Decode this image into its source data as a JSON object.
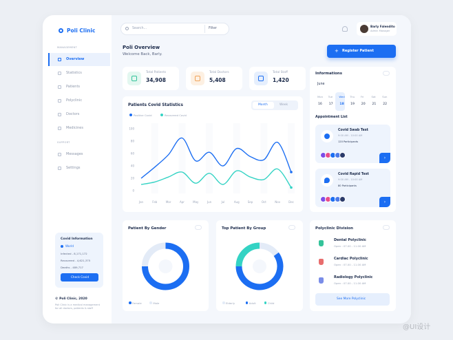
{
  "sidebar": {
    "brand": "Poli Clinic",
    "sections": [
      {
        "title": "MANAGEMENT",
        "items": [
          "Overview",
          "Statistics",
          "Patients",
          "Polyclinic",
          "Doctors",
          "Medicines"
        ]
      },
      {
        "title": "SUPPORT",
        "items": [
          "Messages",
          "Settings"
        ]
      }
    ],
    "covid": {
      "title": "Covid Information",
      "region": "World",
      "stats": [
        "Infected - 8,171,172",
        "Recovered - 4,621,375",
        "Deaths - 489,717"
      ],
      "button": "Check Covid"
    },
    "footer": {
      "copyright": "© Poli Clinic, 2020",
      "note": "Poli Clinic is a medical management for all doctors, patients & staff"
    }
  },
  "topbar": {
    "search": "Search...",
    "filter": "Filter",
    "user": {
      "name": "Barly Falendito",
      "role": "Admin Manager"
    }
  },
  "header": {
    "title": "Poli Overview",
    "subtitle": "Welcome Back, Barly.",
    "button": "Register Patient"
  },
  "stats": [
    {
      "label": "Total Patients",
      "value": "34,908"
    },
    {
      "label": "Total Doctors",
      "value": "5,408"
    },
    {
      "label": "Total Staff",
      "value": "1,420"
    }
  ],
  "chart_data": [
    {
      "type": "line",
      "title": "Patients Covid Statistics",
      "tabs": [
        "Month",
        "Week"
      ],
      "categories": [
        "Jan",
        "Feb",
        "Mar",
        "Apr",
        "May",
        "Jun",
        "Jul",
        "Aug",
        "Sep",
        "Oct",
        "Nov",
        "Dec"
      ],
      "series": [
        {
          "name": "Positive Covid",
          "color": "#1c6ef2",
          "values": [
            20,
            38,
            58,
            85,
            48,
            62,
            40,
            68,
            55,
            50,
            78,
            30
          ]
        },
        {
          "name": "Recovered Covid",
          "color": "#34d3c4",
          "values": [
            10,
            14,
            22,
            30,
            12,
            28,
            10,
            32,
            22,
            18,
            35,
            5
          ]
        }
      ],
      "ylim": [
        0,
        100
      ],
      "yticks": [
        0,
        20,
        40,
        60,
        80,
        100
      ],
      "grid": false
    },
    {
      "type": "pie",
      "title": "Patient By Gender",
      "categories": [
        "Female",
        "Male"
      ],
      "values": [
        75,
        25
      ],
      "colors": [
        "#1c6ef2",
        "#e3ebf7"
      ]
    },
    {
      "type": "pie",
      "title": "Top Patient By Group",
      "categories": [
        "Elderly",
        "Adult",
        "Child"
      ],
      "values": [
        15,
        60,
        25
      ],
      "colors": [
        "#e3ebf7",
        "#1c6ef2",
        "#34d3c4"
      ]
    }
  ],
  "informations": {
    "title": "Informations",
    "month": "June",
    "days": [
      "Mon",
      "Tue",
      "Wed",
      "Thu",
      "Fri",
      "Sat",
      "Sun"
    ],
    "dates": [
      16,
      17,
      18,
      19,
      20,
      21,
      22
    ],
    "appointment_title": "Appointment List",
    "appointments": [
      {
        "title": "Covid Swab Test",
        "time": "9:00 AM - 10:00 AM",
        "participants": "120 Participants"
      },
      {
        "title": "Covid Rapid Test",
        "time": "9:00 AM - 10:00 AM",
        "participants": "80 Participants"
      }
    ]
  },
  "polyclinic": {
    "title": "Polyclinic Division",
    "items": [
      {
        "name": "Dental Polyclinic",
        "hours": "Open : 07.00 - 11.00 AM"
      },
      {
        "name": "Cardiac Polyclinic",
        "hours": "Open : 07.00 - 11.00 AM"
      },
      {
        "name": "Radiology Polyclinic",
        "hours": "Open : 07.00 - 11.00 AM"
      }
    ],
    "button": "See More Polyclinic"
  },
  "watermark": "@UI设计"
}
